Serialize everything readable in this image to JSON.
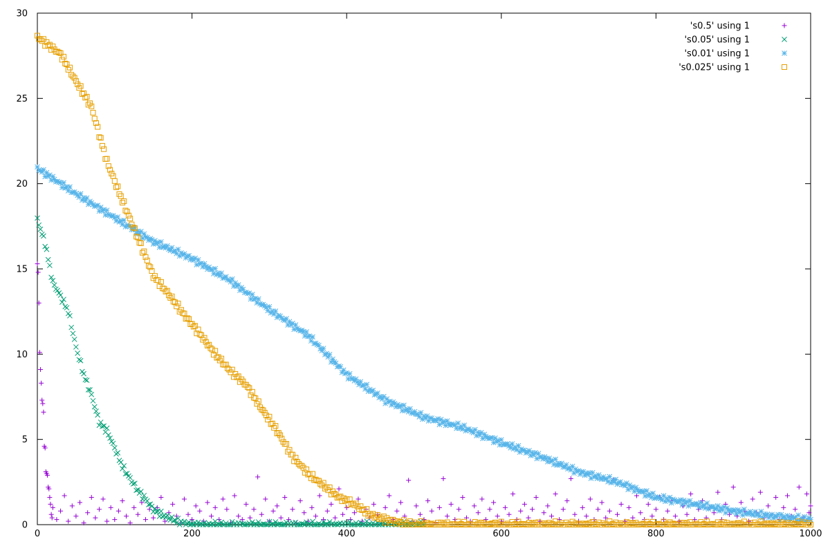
{
  "chart_data": {
    "type": "scatter",
    "title": "",
    "xlabel": "",
    "ylabel": "",
    "xlim": [
      0,
      1000
    ],
    "ylim": [
      0,
      30
    ],
    "xticks": [
      0,
      200,
      400,
      600,
      800,
      1000
    ],
    "yticks": [
      0,
      5,
      10,
      15,
      20,
      25,
      30
    ],
    "grid": false,
    "legend_position": "top-right",
    "series": [
      {
        "name": "'s0.5' using 1",
        "marker": "plus",
        "color": "#9400d3",
        "description": "spike at start then noisy values mostly between 0 and 2 across full range",
        "points": [
          [
            0,
            15.3
          ],
          [
            1,
            14.8
          ],
          [
            2,
            13
          ],
          [
            3,
            10.1
          ],
          [
            4,
            9.1
          ],
          [
            5,
            8.3
          ],
          [
            6,
            7.3
          ],
          [
            7,
            7.1
          ],
          [
            8,
            6.6
          ],
          [
            9,
            4.6
          ],
          [
            10,
            4.5
          ],
          [
            11,
            3.1
          ],
          [
            12,
            3.0
          ],
          [
            13,
            2.9
          ],
          [
            14,
            2.2
          ],
          [
            15,
            2.1
          ],
          [
            16,
            1.6
          ],
          [
            17,
            1.2
          ],
          [
            18,
            0.6
          ],
          [
            19,
            0.4
          ],
          [
            20,
            1.0
          ],
          [
            25,
            0.3
          ],
          [
            30,
            0.8
          ],
          [
            35,
            1.7
          ],
          [
            40,
            0.2
          ],
          [
            45,
            1.1
          ],
          [
            50,
            0.5
          ],
          [
            55,
            1.3
          ],
          [
            60,
            0.1
          ],
          [
            65,
            0.7
          ],
          [
            70,
            1.6
          ],
          [
            75,
            0.4
          ],
          [
            80,
            0.9
          ],
          [
            85,
            1.5
          ],
          [
            90,
            0.2
          ],
          [
            95,
            1.0
          ],
          [
            100,
            0.3
          ],
          [
            105,
            0.8
          ],
          [
            110,
            1.4
          ],
          [
            115,
            0.5
          ],
          [
            120,
            0.1
          ],
          [
            125,
            1.0
          ],
          [
            130,
            0.6
          ],
          [
            135,
            1.3
          ],
          [
            140,
            0.3
          ],
          [
            145,
            0.9
          ],
          [
            150,
            0.4
          ],
          [
            155,
            1.0
          ],
          [
            160,
            1.6
          ],
          [
            165,
            0.2
          ],
          [
            170,
            0.7
          ],
          [
            175,
            1.2
          ],
          [
            180,
            0.5
          ],
          [
            185,
            0.1
          ],
          [
            190,
            1.5
          ],
          [
            195,
            0.6
          ],
          [
            200,
            0.3
          ],
          [
            205,
            1.1
          ],
          [
            210,
            0.8
          ],
          [
            215,
            0.2
          ],
          [
            220,
            1.3
          ],
          [
            225,
            0.5
          ],
          [
            230,
            1.0
          ],
          [
            235,
            0.3
          ],
          [
            240,
            1.5
          ],
          [
            245,
            0.9
          ],
          [
            250,
            0.1
          ],
          [
            255,
            1.7
          ],
          [
            260,
            0.5
          ],
          [
            265,
            0.3
          ],
          [
            270,
            1.2
          ],
          [
            275,
            0.4
          ],
          [
            280,
            0.9
          ],
          [
            285,
            2.8
          ],
          [
            290,
            0.6
          ],
          [
            295,
            1.5
          ],
          [
            300,
            0.2
          ],
          [
            305,
            0.8
          ],
          [
            310,
            1.1
          ],
          [
            315,
            0.4
          ],
          [
            320,
            1.6
          ],
          [
            325,
            0.3
          ],
          [
            330,
            0.9
          ],
          [
            335,
            0.1
          ],
          [
            340,
            1.4
          ],
          [
            345,
            0.7
          ],
          [
            350,
            0.2
          ],
          [
            355,
            1.0
          ],
          [
            360,
            0.5
          ],
          [
            365,
            1.7
          ],
          [
            370,
            0.3
          ],
          [
            375,
            0.8
          ],
          [
            380,
            1.2
          ],
          [
            385,
            0.4
          ],
          [
            390,
            2.1
          ],
          [
            395,
            0.6
          ],
          [
            400,
            1.0
          ],
          [
            405,
            0.3
          ],
          [
            410,
            0.7
          ],
          [
            415,
            1.5
          ],
          [
            420,
            0.2
          ],
          [
            425,
            0.9
          ],
          [
            430,
            0.4
          ],
          [
            435,
            1.2
          ],
          [
            440,
            0.6
          ],
          [
            445,
            0.1
          ],
          [
            450,
            1.0
          ],
          [
            455,
            1.7
          ],
          [
            460,
            0.3
          ],
          [
            465,
            0.8
          ],
          [
            470,
            1.3
          ],
          [
            475,
            0.5
          ],
          [
            480,
            2.6
          ],
          [
            485,
            0.2
          ],
          [
            490,
            1.1
          ],
          [
            495,
            0.6
          ],
          [
            500,
            0.3
          ],
          [
            505,
            1.4
          ],
          [
            510,
            0.8
          ],
          [
            515,
            0.1
          ],
          [
            520,
            1.0
          ],
          [
            525,
            2.7
          ],
          [
            530,
            0.5
          ],
          [
            535,
            1.2
          ],
          [
            540,
            0.3
          ],
          [
            545,
            0.9
          ],
          [
            550,
            1.6
          ],
          [
            555,
            0.4
          ],
          [
            560,
            0.2
          ],
          [
            565,
            1.1
          ],
          [
            570,
            0.7
          ],
          [
            575,
            1.5
          ],
          [
            580,
            0.3
          ],
          [
            585,
            0.9
          ],
          [
            590,
            1.3
          ],
          [
            595,
            0.5
          ],
          [
            600,
            0.2
          ],
          [
            605,
            1.0
          ],
          [
            610,
            0.6
          ],
          [
            615,
            1.8
          ],
          [
            620,
            0.3
          ],
          [
            625,
            0.8
          ],
          [
            630,
            1.2
          ],
          [
            635,
            0.4
          ],
          [
            640,
            0.9
          ],
          [
            645,
            1.6
          ],
          [
            650,
            0.2
          ],
          [
            655,
            0.7
          ],
          [
            660,
            1.1
          ],
          [
            665,
            0.5
          ],
          [
            670,
            1.8
          ],
          [
            675,
            0.3
          ],
          [
            680,
            0.9
          ],
          [
            685,
            1.4
          ],
          [
            690,
            2.7
          ],
          [
            695,
            0.6
          ],
          [
            700,
            0.2
          ],
          [
            705,
            1.0
          ],
          [
            710,
            0.5
          ],
          [
            715,
            1.5
          ],
          [
            720,
            0.3
          ],
          [
            725,
            0.9
          ],
          [
            730,
            1.3
          ],
          [
            735,
            0.4
          ],
          [
            740,
            0.8
          ],
          [
            745,
            2.6
          ],
          [
            750,
            0.6
          ],
          [
            755,
            1.2
          ],
          [
            760,
            0.2
          ],
          [
            765,
            1.0
          ],
          [
            770,
            0.4
          ],
          [
            775,
            1.7
          ],
          [
            780,
            0.7
          ],
          [
            785,
            0.3
          ],
          [
            790,
            1.2
          ],
          [
            795,
            0.5
          ],
          [
            800,
            0.9
          ],
          [
            805,
            1.6
          ],
          [
            810,
            0.3
          ],
          [
            815,
            0.8
          ],
          [
            820,
            1.4
          ],
          [
            825,
            0.5
          ],
          [
            830,
            0.2
          ],
          [
            835,
            1.1
          ],
          [
            840,
            0.6
          ],
          [
            845,
            1.8
          ],
          [
            850,
            0.3
          ],
          [
            855,
            0.9
          ],
          [
            860,
            1.4
          ],
          [
            865,
            0.4
          ],
          [
            870,
            1.0
          ],
          [
            875,
            0.7
          ],
          [
            880,
            1.9
          ],
          [
            885,
            0.3
          ],
          [
            890,
            1.2
          ],
          [
            895,
            0.6
          ],
          [
            900,
            2.2
          ],
          [
            905,
            0.5
          ],
          [
            910,
            1.3
          ],
          [
            915,
            0.8
          ],
          [
            920,
            0.2
          ],
          [
            925,
            1.5
          ],
          [
            930,
            0.7
          ],
          [
            935,
            1.9
          ],
          [
            940,
            0.4
          ],
          [
            945,
            1.1
          ],
          [
            950,
            0.6
          ],
          [
            955,
            1.6
          ],
          [
            960,
            0.3
          ],
          [
            965,
            1.0
          ],
          [
            970,
            1.7
          ],
          [
            975,
            0.5
          ],
          [
            980,
            0.9
          ],
          [
            985,
            2.2
          ],
          [
            990,
            0.4
          ],
          [
            995,
            1.8
          ],
          [
            998,
            0.7
          ],
          [
            1000,
            1.1
          ]
        ]
      },
      {
        "name": "'s0.05' using 1",
        "marker": "cross",
        "color": "#009e73",
        "description": "drops from about 18 at x=0 to 0 near x=200, remains 0 afterward",
        "points": [
          [
            0,
            17.9
          ],
          [
            10,
            16.5
          ],
          [
            20,
            14.2
          ],
          [
            30,
            13.4
          ],
          [
            40,
            12.5
          ],
          [
            50,
            10.4
          ],
          [
            60,
            8.8
          ],
          [
            70,
            7.6
          ],
          [
            80,
            6.0
          ],
          [
            90,
            5.5
          ],
          [
            100,
            4.5
          ],
          [
            110,
            3.4
          ],
          [
            120,
            2.7
          ],
          [
            130,
            2.0
          ],
          [
            140,
            1.5
          ],
          [
            150,
            0.9
          ],
          [
            160,
            0.6
          ],
          [
            170,
            0.4
          ],
          [
            180,
            0.2
          ],
          [
            190,
            0.1
          ],
          [
            200,
            0.0
          ],
          [
            300,
            0.0
          ],
          [
            400,
            0.0
          ],
          [
            500,
            0.0
          ]
        ]
      },
      {
        "name": "'s0.01' using 1",
        "marker": "star",
        "color": "#56b4e9",
        "description": "smooth decline from about 21 at x=0 to about 0.3 at x=1000",
        "points": [
          [
            0,
            20.9
          ],
          [
            50,
            19.4
          ],
          [
            100,
            18.0
          ],
          [
            150,
            16.6
          ],
          [
            200,
            15.6
          ],
          [
            250,
            14.3
          ],
          [
            300,
            12.6
          ],
          [
            350,
            11.1
          ],
          [
            400,
            8.8
          ],
          [
            450,
            7.3
          ],
          [
            500,
            6.3
          ],
          [
            550,
            5.7
          ],
          [
            600,
            4.8
          ],
          [
            650,
            4.0
          ],
          [
            700,
            3.1
          ],
          [
            750,
            2.5
          ],
          [
            800,
            1.6
          ],
          [
            850,
            1.2
          ],
          [
            900,
            0.8
          ],
          [
            950,
            0.5
          ],
          [
            1000,
            0.3
          ]
        ]
      },
      {
        "name": "'s0.025' using 1",
        "marker": "square",
        "color": "#e69f00",
        "description": "steep decline from about 28.5 at x=0 to near 0 by x=500",
        "points": [
          [
            0,
            28.6
          ],
          [
            30,
            27.6
          ],
          [
            50,
            26.0
          ],
          [
            70,
            24.5
          ],
          [
            90,
            21.3
          ],
          [
            110,
            19.0
          ],
          [
            130,
            16.8
          ],
          [
            150,
            14.6
          ],
          [
            170,
            13.5
          ],
          [
            190,
            12.3
          ],
          [
            210,
            11.2
          ],
          [
            230,
            10.0
          ],
          [
            250,
            9.0
          ],
          [
            270,
            8.2
          ],
          [
            290,
            6.8
          ],
          [
            310,
            5.5
          ],
          [
            330,
            4.0
          ],
          [
            350,
            3.0
          ],
          [
            370,
            2.3
          ],
          [
            390,
            1.6
          ],
          [
            410,
            1.2
          ],
          [
            430,
            0.6
          ],
          [
            450,
            0.3
          ],
          [
            470,
            0.1
          ],
          [
            500,
            0.0
          ],
          [
            600,
            0.0
          ],
          [
            800,
            0.0
          ],
          [
            1000,
            0.0
          ]
        ]
      }
    ]
  }
}
